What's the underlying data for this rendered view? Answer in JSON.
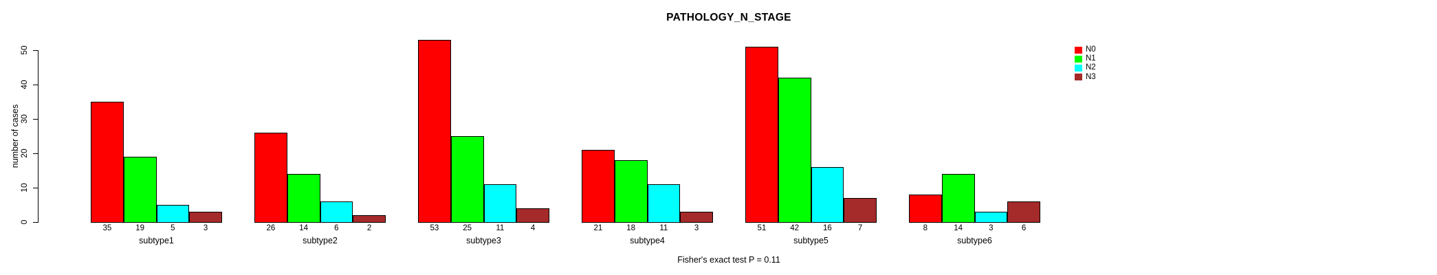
{
  "title": "PATHOLOGY_N_STAGE",
  "footer": "Fisher's exact test P = 0.11",
  "y_axis": {
    "label": "number of cases",
    "ticks": [
      0,
      10,
      20,
      30,
      40,
      50
    ]
  },
  "legend": {
    "entries": [
      "N0",
      "N1",
      "N2",
      "N3"
    ]
  },
  "colors": {
    "N0": "#FF0000",
    "N1": "#00FF00",
    "N2": "#00FFFF",
    "N3": "#A52A2A",
    "axis": "#000000",
    "background": "#FFFFFF"
  },
  "chart_data": {
    "type": "bar",
    "grouped": true,
    "title": "PATHOLOGY_N_STAGE",
    "xlabel": "",
    "ylabel": "number of cases",
    "ylim": [
      0,
      55
    ],
    "yticks": [
      0,
      10,
      20,
      30,
      40,
      50
    ],
    "grid": false,
    "legend_position": "right",
    "annotation": "Fisher's exact test P = 0.11",
    "categories": [
      "subtype1",
      "subtype2",
      "subtype3",
      "subtype4",
      "subtype5",
      "subtype6"
    ],
    "series": [
      {
        "name": "N0",
        "color": "#FF0000",
        "values": [
          35,
          26,
          53,
          21,
          51,
          8
        ]
      },
      {
        "name": "N1",
        "color": "#00FF00",
        "values": [
          19,
          14,
          25,
          18,
          42,
          14
        ]
      },
      {
        "name": "N2",
        "color": "#00FFFF",
        "values": [
          5,
          6,
          11,
          11,
          16,
          3
        ]
      },
      {
        "name": "N3",
        "color": "#A52A2A",
        "values": [
          3,
          2,
          4,
          3,
          7,
          6
        ]
      }
    ],
    "bar_value_labels_shown": true
  }
}
